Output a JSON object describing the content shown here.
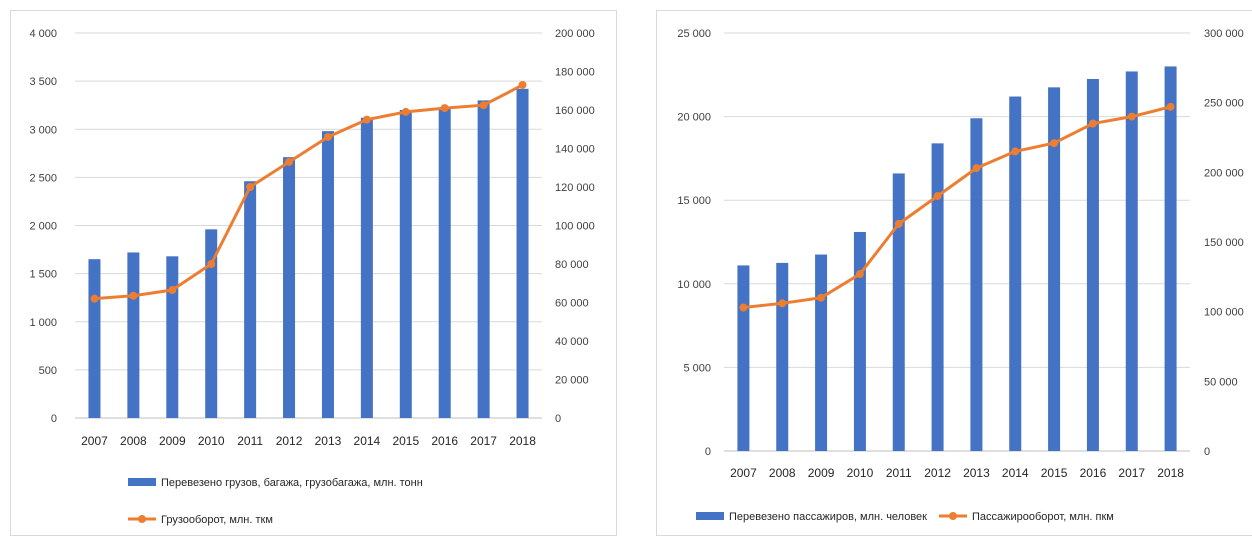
{
  "colors": {
    "bar": "#4472c4",
    "line": "#ed7d31",
    "grid": "#d9d9d9",
    "text": "#404040"
  },
  "chart_data": [
    {
      "type": "bar+line",
      "title": "",
      "categories": [
        "2007",
        "2008",
        "2009",
        "2010",
        "2011",
        "2012",
        "2013",
        "2014",
        "2015",
        "2016",
        "2017",
        "2018"
      ],
      "series": [
        {
          "name": "Перевезено грузов, багажа, грузобагажа, млн. тонн",
          "kind": "bar",
          "axis": "left",
          "values": [
            1650,
            1720,
            1680,
            1960,
            2460,
            2710,
            2980,
            3120,
            3200,
            3220,
            3300,
            3420
          ]
        },
        {
          "name": "Грузооборот, млн. ткм",
          "kind": "line",
          "axis": "right",
          "values": [
            62000,
            63500,
            66500,
            80000,
            120000,
            133000,
            146000,
            155000,
            159000,
            161000,
            162500,
            173000
          ]
        }
      ],
      "left_axis": {
        "ylim": [
          0,
          4000
        ],
        "ticks": [
          "4 000",
          "3 500",
          "3 000",
          "2 500",
          "2 000",
          "1 500",
          "1 000",
          "500",
          "0"
        ]
      },
      "right_axis": {
        "ylim": [
          0,
          200000
        ],
        "ticks": [
          "200 000",
          "180 000",
          "160 000",
          "140 000",
          "120 000",
          "100 000",
          "80 000",
          "60 000",
          "40 000",
          "20 000",
          "0"
        ]
      },
      "grid": true,
      "legend_position": "bottom"
    },
    {
      "type": "bar+line",
      "title": "",
      "categories": [
        "2007",
        "2008",
        "2009",
        "2010",
        "2011",
        "2012",
        "2013",
        "2014",
        "2015",
        "2016",
        "2017",
        "2018"
      ],
      "series": [
        {
          "name": "Перевезено пассажиров, млн. человек",
          "kind": "bar",
          "axis": "left",
          "values": [
            11100,
            11250,
            11750,
            13100,
            16600,
            18400,
            19900,
            21200,
            21750,
            22250,
            22700,
            23000
          ]
        },
        {
          "name": "Пассажирооборот, млн. пкм",
          "kind": "line",
          "axis": "right",
          "values": [
            103000,
            106000,
            110000,
            127000,
            163000,
            183000,
            203000,
            215000,
            221000,
            235000,
            240000,
            247000
          ]
        }
      ],
      "left_axis": {
        "ylim": [
          0,
          25000
        ],
        "ticks": [
          "25 000",
          "20 000",
          "15 000",
          "10 000",
          "5 000",
          "0"
        ]
      },
      "right_axis": {
        "ylim": [
          0,
          300000
        ],
        "ticks": [
          "300 000",
          "250 000",
          "200 000",
          "150 000",
          "100 000",
          "50 000",
          "0"
        ]
      },
      "grid": true,
      "legend_position": "bottom"
    }
  ]
}
